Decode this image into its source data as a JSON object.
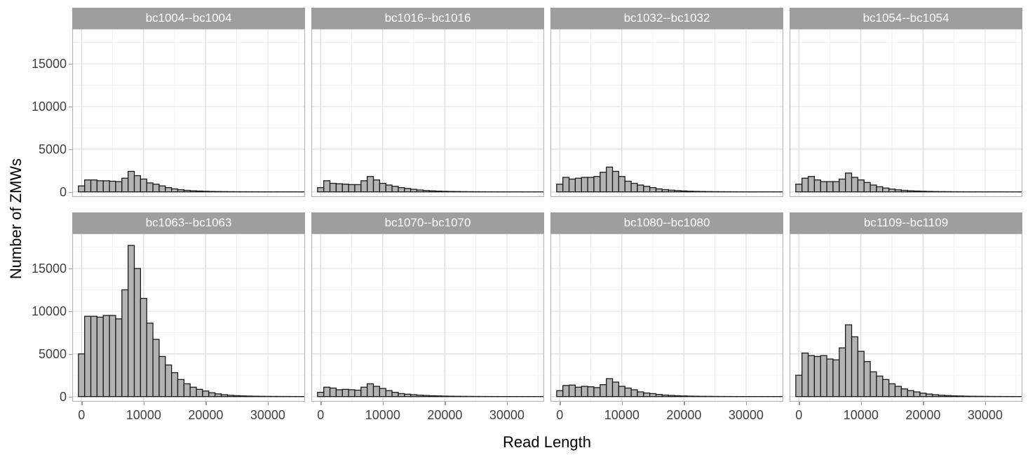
{
  "chart_data": {
    "type": "bar",
    "subtype": "faceted-histogram-2x4",
    "title": "",
    "xlabel": "Read Length",
    "ylabel": "Number of ZMWs",
    "bin_width": 1000,
    "bin_centers_note": "counts[i] is the count for the bin centered at i*1000 (bins span center-500 to center+500)",
    "xlim": [
      -1500,
      36000
    ],
    "ylim": [
      -600,
      19100
    ],
    "x_major_ticks": [
      0,
      10000,
      20000,
      30000
    ],
    "x_tick_labels": [
      "0",
      "10000",
      "20000",
      "30000"
    ],
    "x_minor_gridlines": [
      5000,
      15000,
      25000,
      35000
    ],
    "y_major_ticks": [
      0,
      5000,
      10000,
      15000
    ],
    "y_tick_labels": [
      "0",
      "5000",
      "10000",
      "15000"
    ],
    "y_minor_gridlines": [
      2500,
      7500,
      12500,
      17500
    ],
    "grid": "major and minor gridlines, light gray on white panel",
    "legend": "none",
    "facets": [
      {
        "label": "bc1004--bc1004",
        "counts": [
          700,
          1400,
          1400,
          1300,
          1300,
          1250,
          1200,
          1600,
          2400,
          1900,
          1500,
          1050,
          900,
          700,
          500,
          350,
          250,
          180,
          130,
          100,
          70,
          50,
          40,
          30,
          25,
          20,
          15,
          12,
          10,
          8,
          6,
          5,
          4,
          3,
          3,
          2,
          2
        ]
      },
      {
        "label": "bc1016--bc1016",
        "counts": [
          500,
          1300,
          1000,
          950,
          900,
          850,
          850,
          1300,
          1800,
          1400,
          1000,
          800,
          650,
          500,
          400,
          300,
          220,
          160,
          120,
          90,
          65,
          50,
          40,
          30,
          22,
          17,
          13,
          10,
          8,
          6,
          5,
          4,
          3,
          2,
          2,
          1,
          1
        ]
      },
      {
        "label": "bc1032--bc1032",
        "counts": [
          900,
          1700,
          1500,
          1600,
          1700,
          1700,
          1800,
          2300,
          2900,
          2400,
          1800,
          1250,
          1000,
          800,
          650,
          500,
          350,
          260,
          200,
          150,
          110,
          80,
          60,
          45,
          35,
          25,
          20,
          15,
          12,
          9,
          7,
          5,
          4,
          3,
          2,
          2,
          1
        ]
      },
      {
        "label": "bc1054--bc1054",
        "counts": [
          900,
          1600,
          1800,
          1400,
          1200,
          1200,
          1200,
          1500,
          2200,
          1700,
          1400,
          1100,
          800,
          600,
          450,
          330,
          240,
          180,
          130,
          100,
          75,
          55,
          40,
          30,
          25,
          18,
          14,
          11,
          8,
          6,
          5,
          4,
          3,
          2,
          2,
          1,
          1
        ]
      },
      {
        "label": "bc1063--bc1063",
        "counts": [
          5000,
          9400,
          9400,
          9300,
          9500,
          9500,
          9100,
          12500,
          17700,
          15000,
          11500,
          8600,
          6700,
          4700,
          3700,
          2800,
          2000,
          1500,
          1100,
          850,
          650,
          450,
          320,
          220,
          150,
          110,
          80,
          60,
          45,
          35,
          25,
          20,
          15,
          12,
          9,
          7,
          5
        ]
      },
      {
        "label": "bc1070--bc1070",
        "counts": [
          500,
          1100,
          1000,
          800,
          850,
          800,
          750,
          1100,
          1500,
          1200,
          950,
          700,
          500,
          350,
          280,
          220,
          170,
          130,
          100,
          80,
          60,
          45,
          35,
          28,
          22,
          17,
          13,
          10,
          8,
          6,
          5,
          4,
          3,
          2,
          2,
          1,
          1
        ]
      },
      {
        "label": "bc1080--bc1080",
        "counts": [
          700,
          1300,
          1350,
          1100,
          1200,
          1150,
          1050,
          1400,
          2100,
          1700,
          1200,
          1000,
          800,
          550,
          420,
          350,
          250,
          180,
          130,
          100,
          75,
          55,
          42,
          32,
          24,
          18,
          14,
          10,
          8,
          6,
          5,
          4,
          3,
          2,
          2,
          1,
          1
        ]
      },
      {
        "label": "bc1109--bc1109",
        "counts": [
          2500,
          5100,
          4800,
          4700,
          4800,
          4400,
          4300,
          5700,
          8400,
          7000,
          5300,
          4100,
          2900,
          2400,
          2000,
          1500,
          1200,
          900,
          700,
          550,
          400,
          300,
          220,
          160,
          120,
          90,
          70,
          50,
          40,
          30,
          22,
          17,
          13,
          10,
          8,
          6,
          5
        ]
      }
    ]
  },
  "style": {
    "strip_bg": "#9e9e9e",
    "strip_text_color": "#ffffff",
    "bar_fill": "#b3b3b3",
    "bar_stroke": "#1a1a1a",
    "grid_major": "#e2e2e2",
    "grid_minor": "#f2f2f2",
    "panel_border": "#b3b3b3",
    "panel_bg": "#ffffff",
    "axis_text_color": "#404040",
    "axis_title_color": "#000000",
    "tick_color": "#999999"
  }
}
